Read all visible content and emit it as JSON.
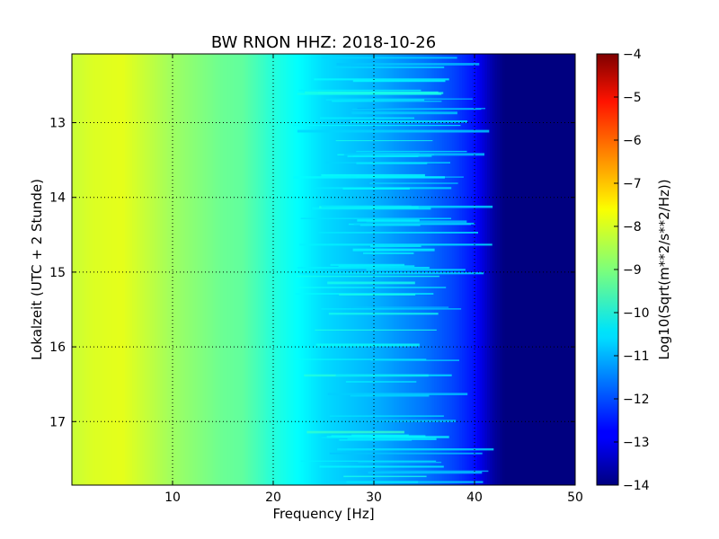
{
  "chart_data": {
    "type": "heatmap",
    "title": "BW RNON HHZ: 2018-10-26",
    "xlabel": "Frequency [Hz]",
    "ylabel": "Lokalzeit (UTC + 2 Stunde)",
    "xlim": [
      0,
      50
    ],
    "ylim": [
      17.85,
      12.08
    ],
    "x_ticks": [
      10,
      20,
      30,
      40,
      50
    ],
    "x_tick_labels": [
      "10",
      "20",
      "30",
      "40",
      "50"
    ],
    "y_ticks": [
      13,
      14,
      15,
      16,
      17
    ],
    "y_tick_labels": [
      "13",
      "14",
      "15",
      "16",
      "17"
    ],
    "grid": true,
    "colormap": "jet",
    "colorbar": {
      "label": "Log10(Sqrt(m**2/s**2/Hz))",
      "range": [
        -14,
        -4
      ],
      "ticks": [
        -4,
        -5,
        -6,
        -7,
        -8,
        -9,
        -10,
        -11,
        -12,
        -13,
        -14
      ],
      "tick_labels": [
        "−4",
        "−5",
        "−6",
        "−7",
        "−8",
        "−9",
        "−10",
        "−11",
        "−12",
        "−13",
        "−14"
      ]
    },
    "spectrum_profile": {
      "frequency_hz": [
        0,
        2,
        5,
        8,
        10,
        15,
        17,
        20,
        25,
        30,
        35,
        38,
        40,
        41,
        42,
        43,
        50
      ],
      "log10_amplitude": [
        -8.3,
        -8.1,
        -8.0,
        -8.4,
        -8.7,
        -9.2,
        -9.3,
        -9.9,
        -10.6,
        -11.0,
        -11.6,
        -12.1,
        -12.6,
        -13.2,
        -13.7,
        -14.0,
        -14.0
      ]
    }
  }
}
